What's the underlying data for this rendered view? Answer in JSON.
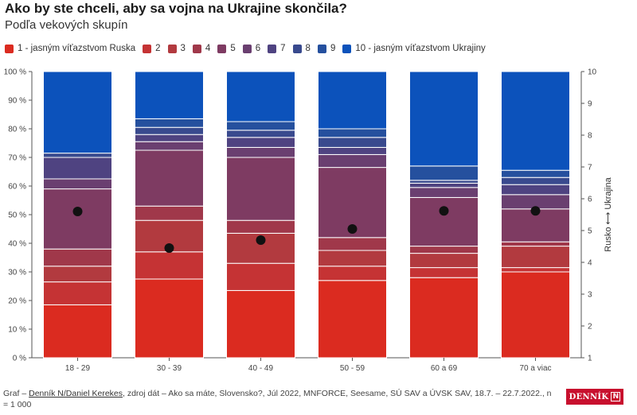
{
  "header": {
    "title": "Ako by ste chceli, aby sa vojna na Ukrajine skončila?",
    "subtitle": "Podľa vekových skupín"
  },
  "legend": [
    {
      "label": "1 - jasným víťazstvom Ruska",
      "color": "#db2b20"
    },
    {
      "label": "2",
      "color": "#c53334"
    },
    {
      "label": "3",
      "color": "#b23a3f"
    },
    {
      "label": "4",
      "color": "#a0384a"
    },
    {
      "label": "5",
      "color": "#7e3b62"
    },
    {
      "label": "6",
      "color": "#6a3f70"
    },
    {
      "label": "7",
      "color": "#4f4381"
    },
    {
      "label": "8",
      "color": "#394a8e"
    },
    {
      "label": "9",
      "color": "#25509e"
    },
    {
      "label": "10 - jasným víťazstvom Ukrajiny",
      "color": "#0c52bb"
    }
  ],
  "chart_data": {
    "type": "stacked-bar",
    "categories": [
      "18 - 29",
      "30 - 39",
      "40 - 49",
      "50 - 59",
      "60 a 69",
      "70 a viac"
    ],
    "series": [
      {
        "name": "1 - jasným víťazstvom Ruska",
        "values": [
          18.5,
          27.5,
          23.5,
          27,
          28,
          30
        ]
      },
      {
        "name": "2",
        "values": [
          8,
          9.5,
          9.5,
          5,
          3.5,
          1.5
        ]
      },
      {
        "name": "3",
        "values": [
          5.5,
          11,
          10.5,
          5.5,
          5,
          7.5
        ]
      },
      {
        "name": "4",
        "values": [
          6,
          5,
          4.5,
          4.5,
          2.5,
          1.5
        ]
      },
      {
        "name": "5",
        "values": [
          21,
          19.5,
          22,
          24.5,
          17,
          11.5
        ]
      },
      {
        "name": "6",
        "values": [
          3.5,
          3,
          3.5,
          4.5,
          3.5,
          5
        ]
      },
      {
        "name": "7",
        "values": [
          7.5,
          2.5,
          3.5,
          2.5,
          1.5,
          3.5
        ]
      },
      {
        "name": "8",
        "values": [
          1.5,
          2.5,
          2.5,
          3.5,
          1,
          2.5
        ]
      },
      {
        "name": "9",
        "values": [
          0,
          3,
          3,
          3,
          5,
          2.5
        ]
      },
      {
        "name": "10 - jasným víťazstvom Ukrajiny",
        "values": [
          28.5,
          16.5,
          17.5,
          20,
          33,
          34.5
        ]
      }
    ],
    "averages": [
      5.6,
      4.45,
      4.7,
      5.05,
      5.62,
      5.62
    ],
    "averages_label": "Rusko ⟷ Ukrajina",
    "y_left": {
      "min": 0,
      "max": 100,
      "ticks": [
        "0 %",
        "10 %",
        "20 %",
        "30 %",
        "40 %",
        "50 %",
        "60 %",
        "70 %",
        "80 %",
        "90 %",
        "100 %"
      ]
    },
    "y_right": {
      "min": 1,
      "max": 10,
      "ticks": [
        "1",
        "2",
        "3",
        "4",
        "5",
        "6",
        "7",
        "8",
        "9",
        "10"
      ]
    }
  },
  "footer": {
    "prefix": "Graf – ",
    "credit": "Denník N/Daniel Kerekes",
    "source": ", zdroj dát – Ako sa máte, Slovensko?, Júl 2022, MNFORCE, Seesame, SÚ SAV a ÚVSK SAV, 18.7. – 22.7.2022., n = 1 000"
  },
  "logo": {
    "text": "DENNÍK",
    "mark": "N"
  }
}
